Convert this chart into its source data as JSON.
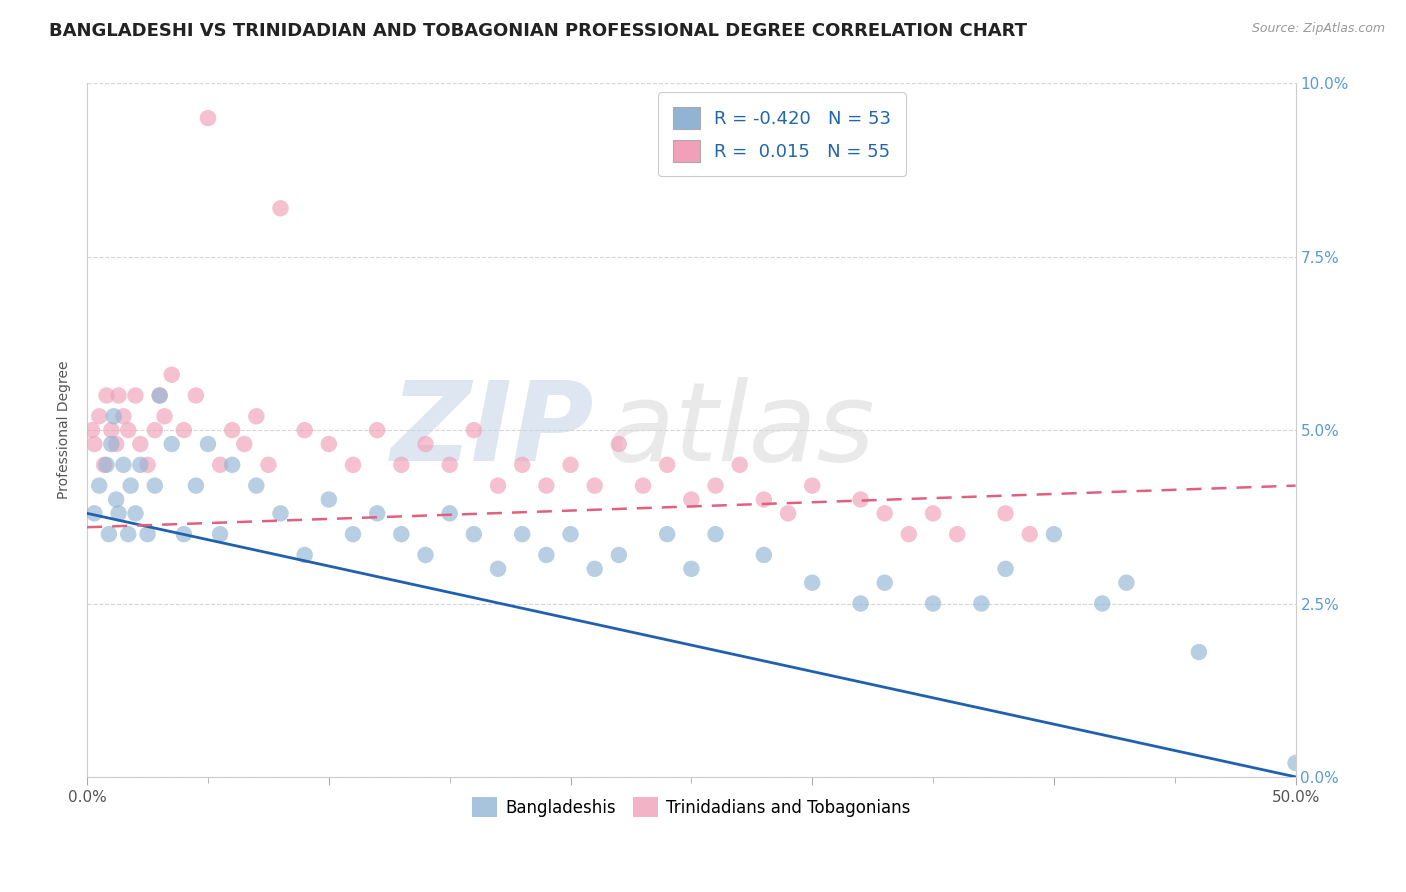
{
  "title": "BANGLADESHI VS TRINIDADIAN AND TOBAGONIAN PROFESSIONAL DEGREE CORRELATION CHART",
  "source": "Source: ZipAtlas.com",
  "ylabel": "Professional Degree",
  "right_yticks": [
    "0.0%",
    "2.5%",
    "5.0%",
    "7.5%",
    "10.0%"
  ],
  "right_ytick_vals": [
    0.0,
    2.5,
    5.0,
    7.5,
    10.0
  ],
  "xlim": [
    0,
    50
  ],
  "ylim": [
    0,
    10
  ],
  "legend_R_blue": "-0.420",
  "legend_N_blue": "53",
  "legend_R_pink": "0.015",
  "legend_N_pink": "55",
  "blue_color": "#92b4d4",
  "pink_color": "#f0a0b8",
  "trend_blue_color": "#2060b0",
  "trend_pink_color": "#e06080",
  "bottom_legend_blue": "Bangladeshis",
  "bottom_legend_pink": "Trinidadians and Tobagonians",
  "blue_x": [
    0.3,
    0.5,
    0.8,
    0.9,
    1.0,
    1.1,
    1.2,
    1.3,
    1.5,
    1.7,
    1.8,
    2.0,
    2.2,
    2.5,
    2.8,
    3.0,
    3.5,
    4.0,
    4.5,
    5.0,
    5.5,
    6.0,
    7.0,
    8.0,
    9.0,
    10.0,
    11.0,
    12.0,
    13.0,
    14.0,
    15.0,
    16.0,
    17.0,
    18.0,
    19.0,
    20.0,
    21.0,
    22.0,
    24.0,
    25.0,
    26.0,
    28.0,
    30.0,
    32.0,
    33.0,
    35.0,
    37.0,
    38.0,
    40.0,
    42.0,
    43.0,
    46.0,
    50.0
  ],
  "blue_y": [
    3.8,
    4.2,
    4.5,
    3.5,
    4.8,
    5.2,
    4.0,
    3.8,
    4.5,
    3.5,
    4.2,
    3.8,
    4.5,
    3.5,
    4.2,
    5.5,
    4.8,
    3.5,
    4.2,
    4.8,
    3.5,
    4.5,
    4.2,
    3.8,
    3.2,
    4.0,
    3.5,
    3.8,
    3.5,
    3.2,
    3.8,
    3.5,
    3.0,
    3.5,
    3.2,
    3.5,
    3.0,
    3.2,
    3.5,
    3.0,
    3.5,
    3.2,
    2.8,
    2.5,
    2.8,
    2.5,
    2.5,
    3.0,
    3.5,
    2.5,
    2.8,
    1.8,
    0.2
  ],
  "pink_x": [
    0.2,
    0.3,
    0.5,
    0.7,
    0.8,
    1.0,
    1.2,
    1.3,
    1.5,
    1.7,
    2.0,
    2.2,
    2.5,
    2.8,
    3.0,
    3.2,
    3.5,
    4.0,
    4.5,
    5.0,
    5.5,
    6.0,
    6.5,
    7.0,
    7.5,
    8.0,
    9.0,
    10.0,
    11.0,
    12.0,
    13.0,
    14.0,
    15.0,
    16.0,
    17.0,
    18.0,
    19.0,
    20.0,
    21.0,
    22.0,
    23.0,
    24.0,
    25.0,
    26.0,
    27.0,
    28.0,
    29.0,
    30.0,
    32.0,
    33.0,
    34.0,
    35.0,
    36.0,
    38.0,
    39.0
  ],
  "pink_y": [
    5.0,
    4.8,
    5.2,
    4.5,
    5.5,
    5.0,
    4.8,
    5.5,
    5.2,
    5.0,
    5.5,
    4.8,
    4.5,
    5.0,
    5.5,
    5.2,
    5.8,
    5.0,
    5.5,
    9.5,
    4.5,
    5.0,
    4.8,
    5.2,
    4.5,
    8.2,
    5.0,
    4.8,
    4.5,
    5.0,
    4.5,
    4.8,
    4.5,
    5.0,
    4.2,
    4.5,
    4.2,
    4.5,
    4.2,
    4.8,
    4.2,
    4.5,
    4.0,
    4.2,
    4.5,
    4.0,
    3.8,
    4.2,
    4.0,
    3.8,
    3.5,
    3.8,
    3.5,
    3.8,
    3.5
  ],
  "grid_color": "#cccccc",
  "title_fontsize": 13,
  "axis_fontsize": 10,
  "tick_fontsize": 11
}
